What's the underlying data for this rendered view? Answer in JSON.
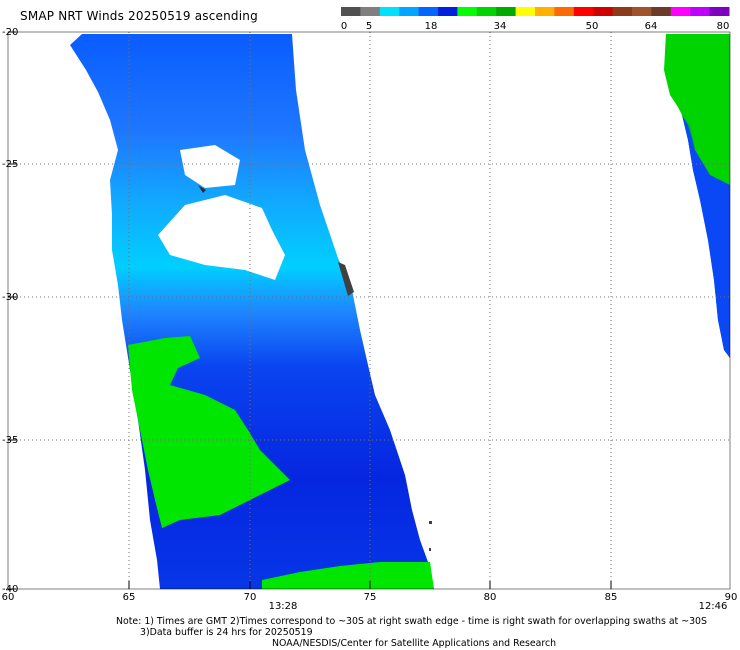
{
  "title": "SMAP NRT Winds 20250519 ascending",
  "colorbar": {
    "ticks": [
      "0",
      "5",
      "18",
      "34",
      "50",
      "64",
      "80"
    ],
    "segments": [
      "#505050",
      "#7f7f7f",
      "#00e0ff",
      "#00a6ff",
      "#0066ff",
      "#0020e0",
      "#00ff00",
      "#00d400",
      "#00aa00",
      "#ffff00",
      "#ffb000",
      "#ff6a00",
      "#ff0000",
      "#d00000",
      "#8b3a1a",
      "#a0522d",
      "#6b3b2a",
      "#ff00ff",
      "#c000ff",
      "#8000c0"
    ]
  },
  "axes": {
    "lat_labels": [
      "-20",
      "-25",
      "-30",
      "-35",
      "-40"
    ],
    "lon_labels": [
      "60",
      "65",
      "70",
      "75",
      "80",
      "85",
      "90"
    ]
  },
  "times": {
    "left_swath": "13:28",
    "right_swath": "12:46"
  },
  "notes": {
    "line1": "Note: 1) Times are GMT 2)Times correspond to ~30S at right swath edge - time is right swath for overlapping swaths at ~30S",
    "line2": "3)Data buffer is 24 hrs for 20250519",
    "line3": "NOAA/NESDIS/Center for Satellite Applications and Research"
  }
}
